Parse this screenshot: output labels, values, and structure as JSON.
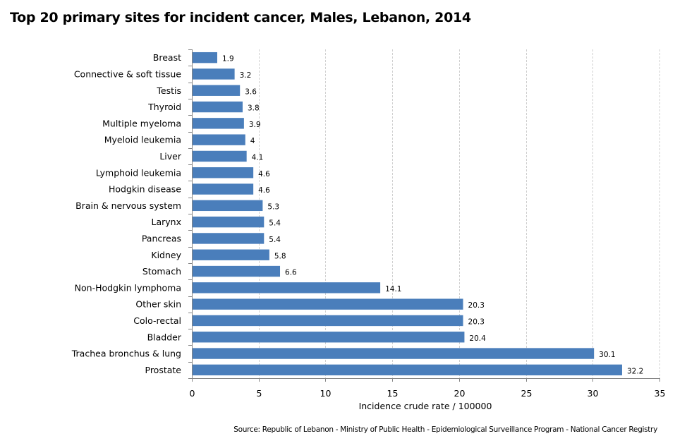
{
  "chart_data": {
    "type": "bar",
    "orientation": "horizontal",
    "title": "Top 20 primary sites for incident cancer, Males, Lebanon, 2014",
    "xlabel": "Incidence crude rate / 100000",
    "ylabel": "",
    "xlim": [
      0,
      35
    ],
    "xticks": [
      0,
      5,
      10,
      15,
      20,
      25,
      30,
      35
    ],
    "grid": "vertical dashed",
    "legend": "none",
    "bar_color": "#4a7ebb",
    "categories": [
      "Breast",
      "Connective & soft tissue",
      "Testis",
      "Thyroid",
      "Multiple myeloma",
      "Myeloid leukemia",
      "Liver",
      "Lymphoid leukemia",
      "Hodgkin disease",
      "Brain & nervous system",
      "Larynx",
      "Pancreas",
      "Kidney",
      "Stomach",
      "Non-Hodgkin lymphoma",
      "Other skin",
      "Colo-rectal",
      "Bladder",
      "Trachea bronchus & lung",
      "Prostate"
    ],
    "values": [
      1.9,
      3.2,
      3.6,
      3.8,
      3.9,
      4,
      4.1,
      4.6,
      4.6,
      5.3,
      5.4,
      5.4,
      5.8,
      6.6,
      14.1,
      20.3,
      20.3,
      20.4,
      30.1,
      32.2
    ],
    "value_labels": [
      "1.9",
      "3.2",
      "3.6",
      "3.8",
      "3.9",
      "4",
      "4.1",
      "4.6",
      "4.6",
      "5.3",
      "5.4",
      "5.4",
      "5.8",
      "6.6",
      "14.1",
      "20.3",
      "20.3",
      "20.4",
      "30.1",
      "32.2"
    ],
    "source": "Source:  Republic of Lebanon  - Ministry of Public Health - Epidemiological Surveillance Program - National Cancer Registry"
  }
}
